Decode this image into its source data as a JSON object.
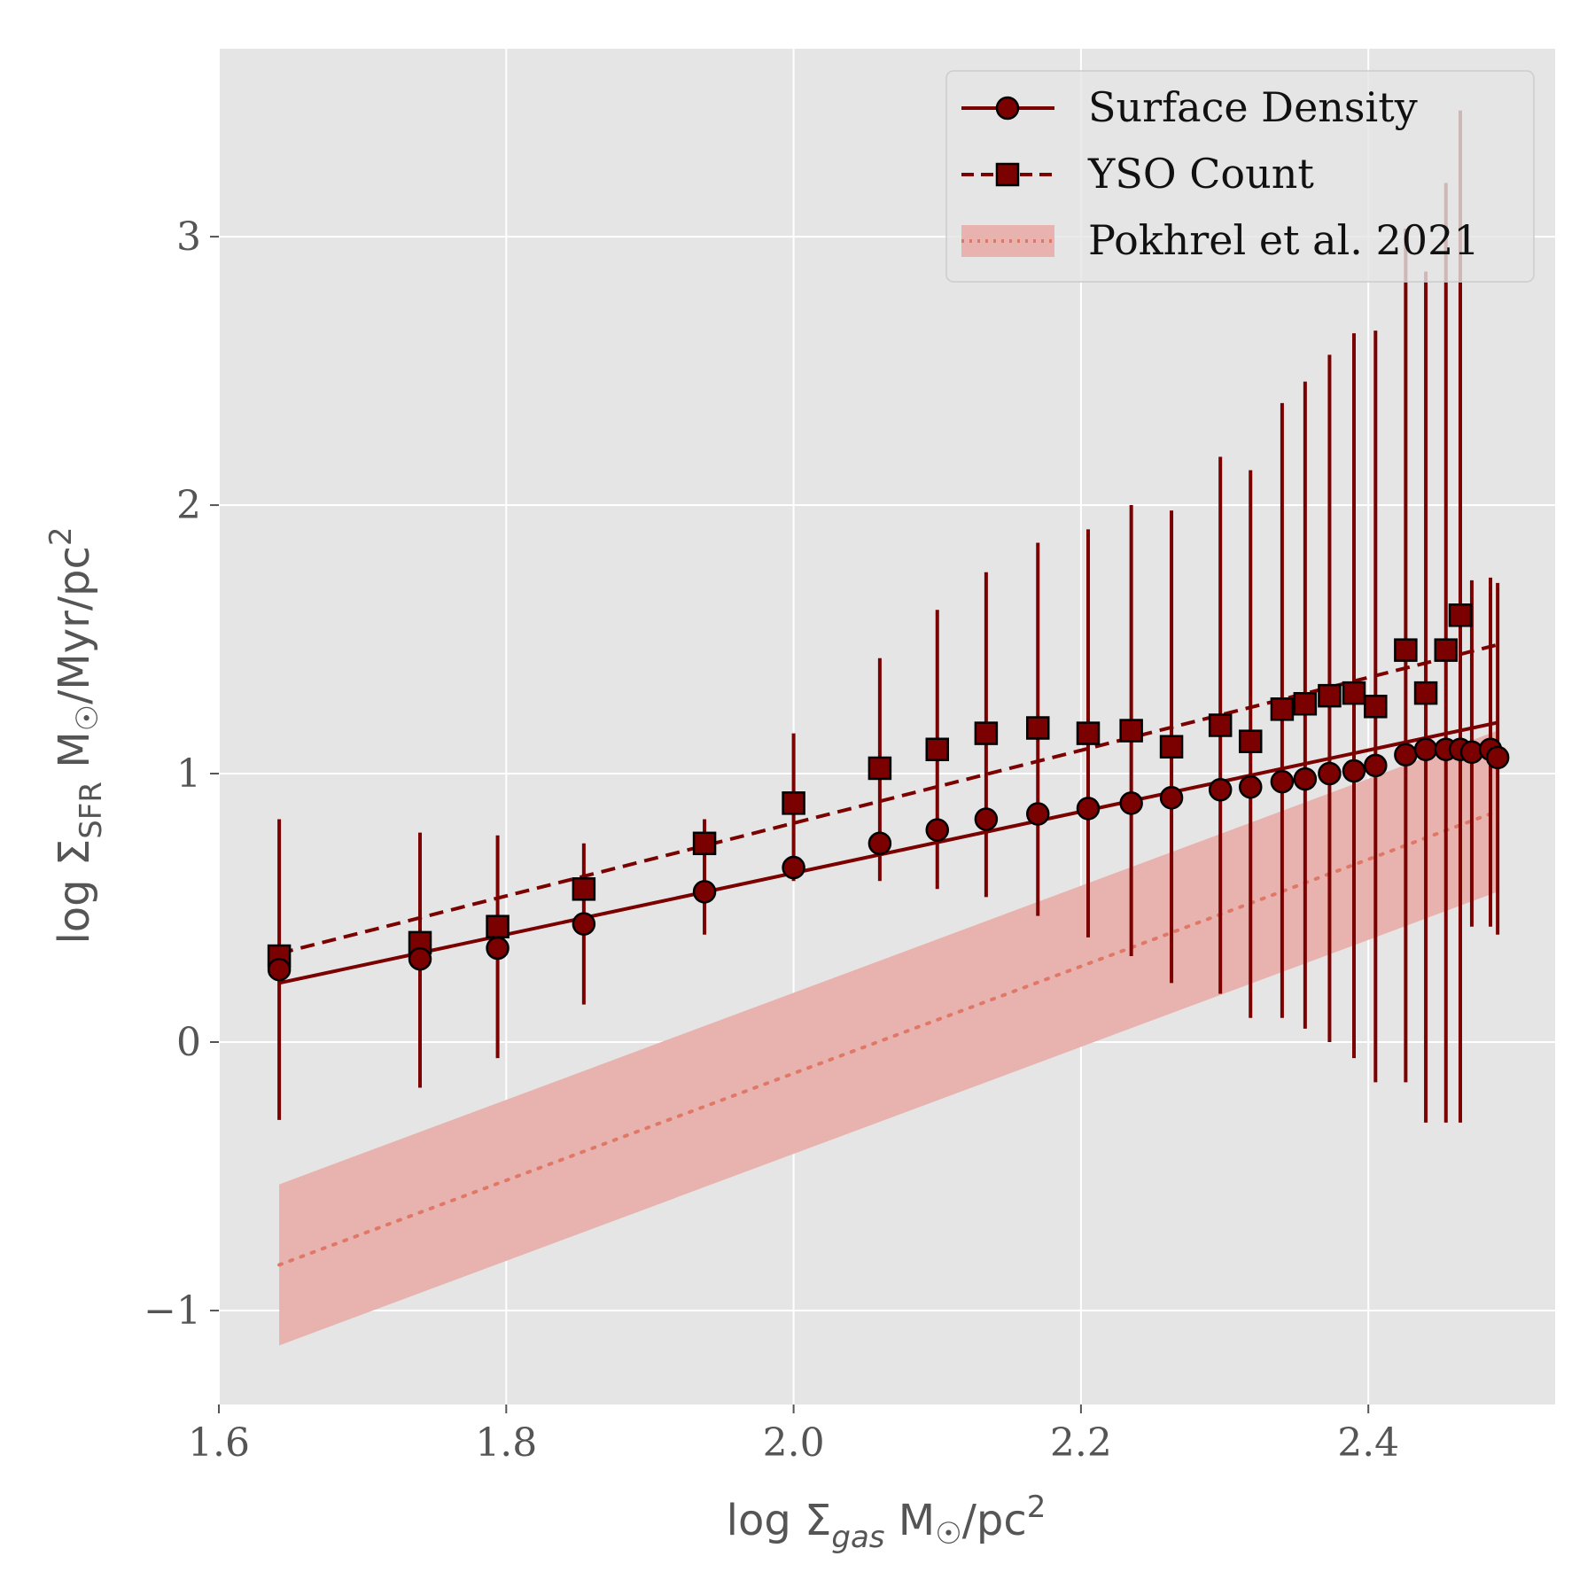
{
  "chart_data": {
    "type": "scatter",
    "xlabel": {
      "prefix": "log Σ",
      "subscript": "gas",
      "unit": " M",
      "sun": "☉",
      "rest": "/pc",
      "sup": "2"
    },
    "ylabel": {
      "prefix": "log Σ",
      "subscript": "SFR",
      "unit": " M",
      "sun": "☉",
      "rest": "/Myr/pc",
      "sup": "2"
    },
    "xlim": [
      1.6,
      2.53
    ],
    "ylim": [
      -1.35,
      3.7
    ],
    "xticks": [
      1.6,
      1.8,
      2.0,
      2.2,
      2.4
    ],
    "xtick_labels": [
      "1.6",
      "1.8",
      "2.0",
      "2.2",
      "2.4"
    ],
    "yticks": [
      -1,
      0,
      1,
      2,
      3
    ],
    "ytick_labels": [
      "−1",
      "0",
      "1",
      "2",
      "3"
    ],
    "grid": true,
    "legend": {
      "position": "top-right",
      "entries": [
        "Surface Density",
        "YSO Count",
        "Pokhrel et al. 2021"
      ]
    },
    "colors": {
      "series": "#7b0000",
      "band": "#e8b2ae",
      "band_line": "#e07868",
      "plot_bg": "#e5e5e5",
      "grid": "#ffffff"
    },
    "x": [
      1.642,
      1.74,
      1.794,
      1.854,
      1.938,
      2.0,
      2.06,
      2.1,
      2.134,
      2.17,
      2.205,
      2.235,
      2.263,
      2.297,
      2.318,
      2.34,
      2.356,
      2.373,
      2.39,
      2.405,
      2.426,
      2.44,
      2.454,
      2.464,
      2.472,
      2.485,
      2.49
    ],
    "series": [
      {
        "name": "Surface Density",
        "marker": "circle",
        "linestyle": "solid",
        "y": [
          0.27,
          0.31,
          0.35,
          0.44,
          0.56,
          0.65,
          0.74,
          0.79,
          0.83,
          0.85,
          0.87,
          0.89,
          0.91,
          0.94,
          0.95,
          0.97,
          0.98,
          1.0,
          1.01,
          1.03,
          1.07,
          1.09,
          1.09,
          1.09,
          1.08,
          1.09,
          1.06
        ],
        "fit": [
          [
            1.642,
            0.22
          ],
          [
            2.49,
            1.19
          ]
        ]
      },
      {
        "name": "YSO Count",
        "marker": "square",
        "linestyle": "dashed",
        "y": [
          0.32,
          0.37,
          0.43,
          0.57,
          0.74,
          0.89,
          1.02,
          1.09,
          1.15,
          1.17,
          1.15,
          1.16,
          1.1,
          1.18,
          1.12,
          1.24,
          1.26,
          1.29,
          1.3,
          1.25,
          1.46,
          1.3,
          1.46,
          1.59,
          null,
          null,
          null
        ],
        "err_low": [
          -0.29,
          -0.17,
          -0.06,
          0.14,
          0.4,
          0.6,
          0.6,
          0.57,
          0.54,
          0.47,
          0.39,
          0.32,
          0.22,
          0.18,
          0.09,
          0.09,
          0.05,
          0.0,
          -0.06,
          -0.15,
          -0.15,
          -0.3,
          -0.3,
          -0.3,
          0.43,
          0.43,
          0.4
        ],
        "err_high": [
          0.83,
          0.78,
          0.77,
          0.74,
          0.83,
          1.15,
          1.43,
          1.61,
          1.75,
          1.86,
          1.91,
          2.0,
          1.98,
          2.18,
          2.13,
          2.38,
          2.46,
          2.56,
          2.64,
          2.65,
          3.03,
          2.87,
          3.2,
          3.47,
          1.72,
          1.73,
          1.71
        ],
        "fit": [
          [
            1.642,
            0.33
          ],
          [
            2.49,
            1.48
          ]
        ]
      },
      {
        "name": "Pokhrel et al. 2021",
        "type": "band",
        "linestyle": "dotted",
        "line": [
          [
            1.642,
            -0.83
          ],
          [
            2.49,
            0.86
          ]
        ],
        "band_low": [
          [
            1.642,
            -1.13
          ],
          [
            2.49,
            0.56
          ]
        ],
        "band_high": [
          [
            1.642,
            -0.53
          ],
          [
            2.49,
            1.16
          ]
        ]
      }
    ]
  }
}
